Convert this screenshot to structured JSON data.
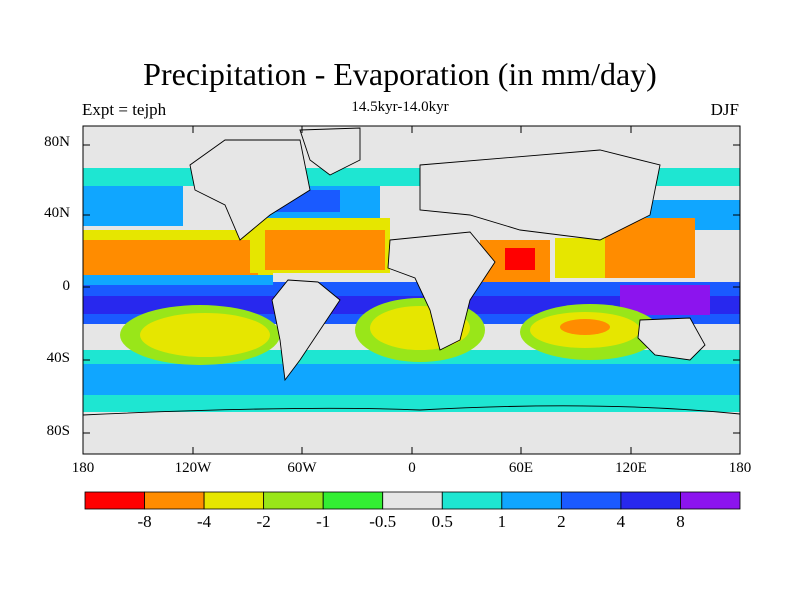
{
  "title": "Precipitation - Evaporation (in mm/day)",
  "subtitle": "14.5kyr-14.0kyr",
  "left_label": "Expt = tejph",
  "right_label": "DJF",
  "lat_ticks": [
    "80N",
    "40N",
    "0",
    "40S",
    "80S"
  ],
  "lon_ticks": [
    "180",
    "120W",
    "60W",
    "0",
    "60E",
    "120E",
    "180"
  ],
  "legend": {
    "colors": [
      "#ff0000",
      "#ff8c00",
      "#e6e600",
      "#99e619",
      "#33ee33",
      "#e6e6e6",
      "#1ee6d2",
      "#10a6ff",
      "#1a5aff",
      "#2828ee",
      "#8c14ee"
    ],
    "labels": [
      "-8",
      "-4",
      "-2",
      "-1",
      "-0.5",
      "0.5",
      "1",
      "2",
      "4",
      "8"
    ]
  },
  "map_colors": {
    "background": "#e6e6e6",
    "dry_strong": "#ff8c00",
    "dry_mod": "#e6e600",
    "dry_weak": "#99e619",
    "wet_weak": "#1ee6d2",
    "wet_mod": "#10a6ff",
    "wet_strong": "#1a5aff",
    "wet_very": "#2828ee",
    "wet_extreme": "#8c14ee",
    "dry_extreme": "#ff0000",
    "coast": "#000000"
  }
}
